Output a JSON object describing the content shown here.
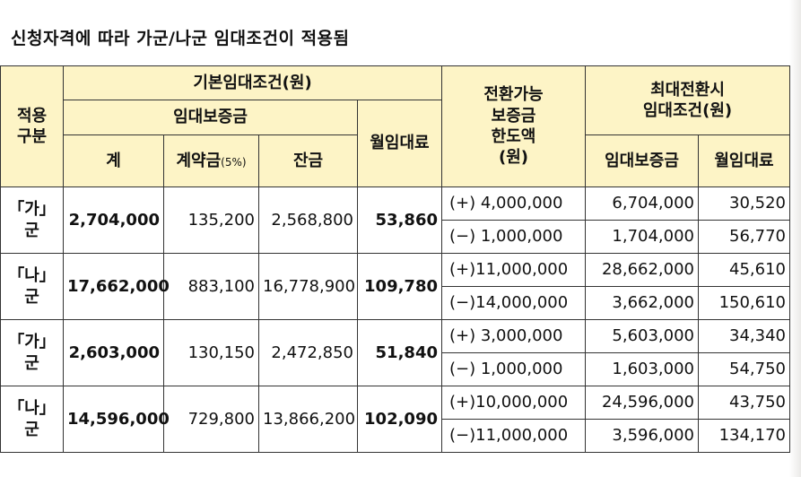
{
  "title": "신청자격에 따라 가군/나군 임대조건이 적용됨",
  "table": {
    "header": {
      "group_col": "적용\n구분",
      "basic": "기본임대조건(원)",
      "deposit": "임대보증금",
      "total": "계",
      "contract": "계약금",
      "contract_note": "(5%)",
      "balance": "잔금",
      "monthly": "월임대료",
      "conversion": "전환가능\n보증금\n한도액\n(원)",
      "max": "최대전환시\n임대조건(원)",
      "max_deposit": "임대보증금",
      "max_monthly": "월임대료"
    },
    "rows": [
      {
        "group": "「가」군",
        "total": "2,704,000",
        "contract": "135,200",
        "balance": "2,568,800",
        "monthly": "53,860",
        "sub": [
          {
            "conversion": "(+) 4,000,000",
            "deposit": "6,704,000",
            "monthly": "30,520"
          },
          {
            "conversion": "(−) 1,000,000",
            "deposit": "1,704,000",
            "monthly": "56,770"
          }
        ]
      },
      {
        "group": "「나」군",
        "total": "17,662,000",
        "contract": "883,100",
        "balance": "16,778,900",
        "monthly": "109,780",
        "sub": [
          {
            "conversion": "(+)11,000,000",
            "deposit": "28,662,000",
            "monthly": "45,610"
          },
          {
            "conversion": "(−)14,000,000",
            "deposit": "3,662,000",
            "monthly": "150,610"
          }
        ]
      },
      {
        "group": "「가」군",
        "total": "2,603,000",
        "contract": "130,150",
        "balance": "2,472,850",
        "monthly": "51,840",
        "sub": [
          {
            "conversion": "(+) 3,000,000",
            "deposit": "5,603,000",
            "monthly": "34,340"
          },
          {
            "conversion": "(−) 1,000,000",
            "deposit": "1,603,000",
            "monthly": "54,750"
          }
        ]
      },
      {
        "group": "「나」군",
        "total": "14,596,000",
        "contract": "729,800",
        "balance": "13,866,200",
        "monthly": "102,090",
        "sub": [
          {
            "conversion": "(+)10,000,000",
            "deposit": "24,596,000",
            "monthly": "43,750"
          },
          {
            "conversion": "(−)11,000,000",
            "deposit": "3,596,000",
            "monthly": "134,170"
          }
        ]
      }
    ]
  }
}
